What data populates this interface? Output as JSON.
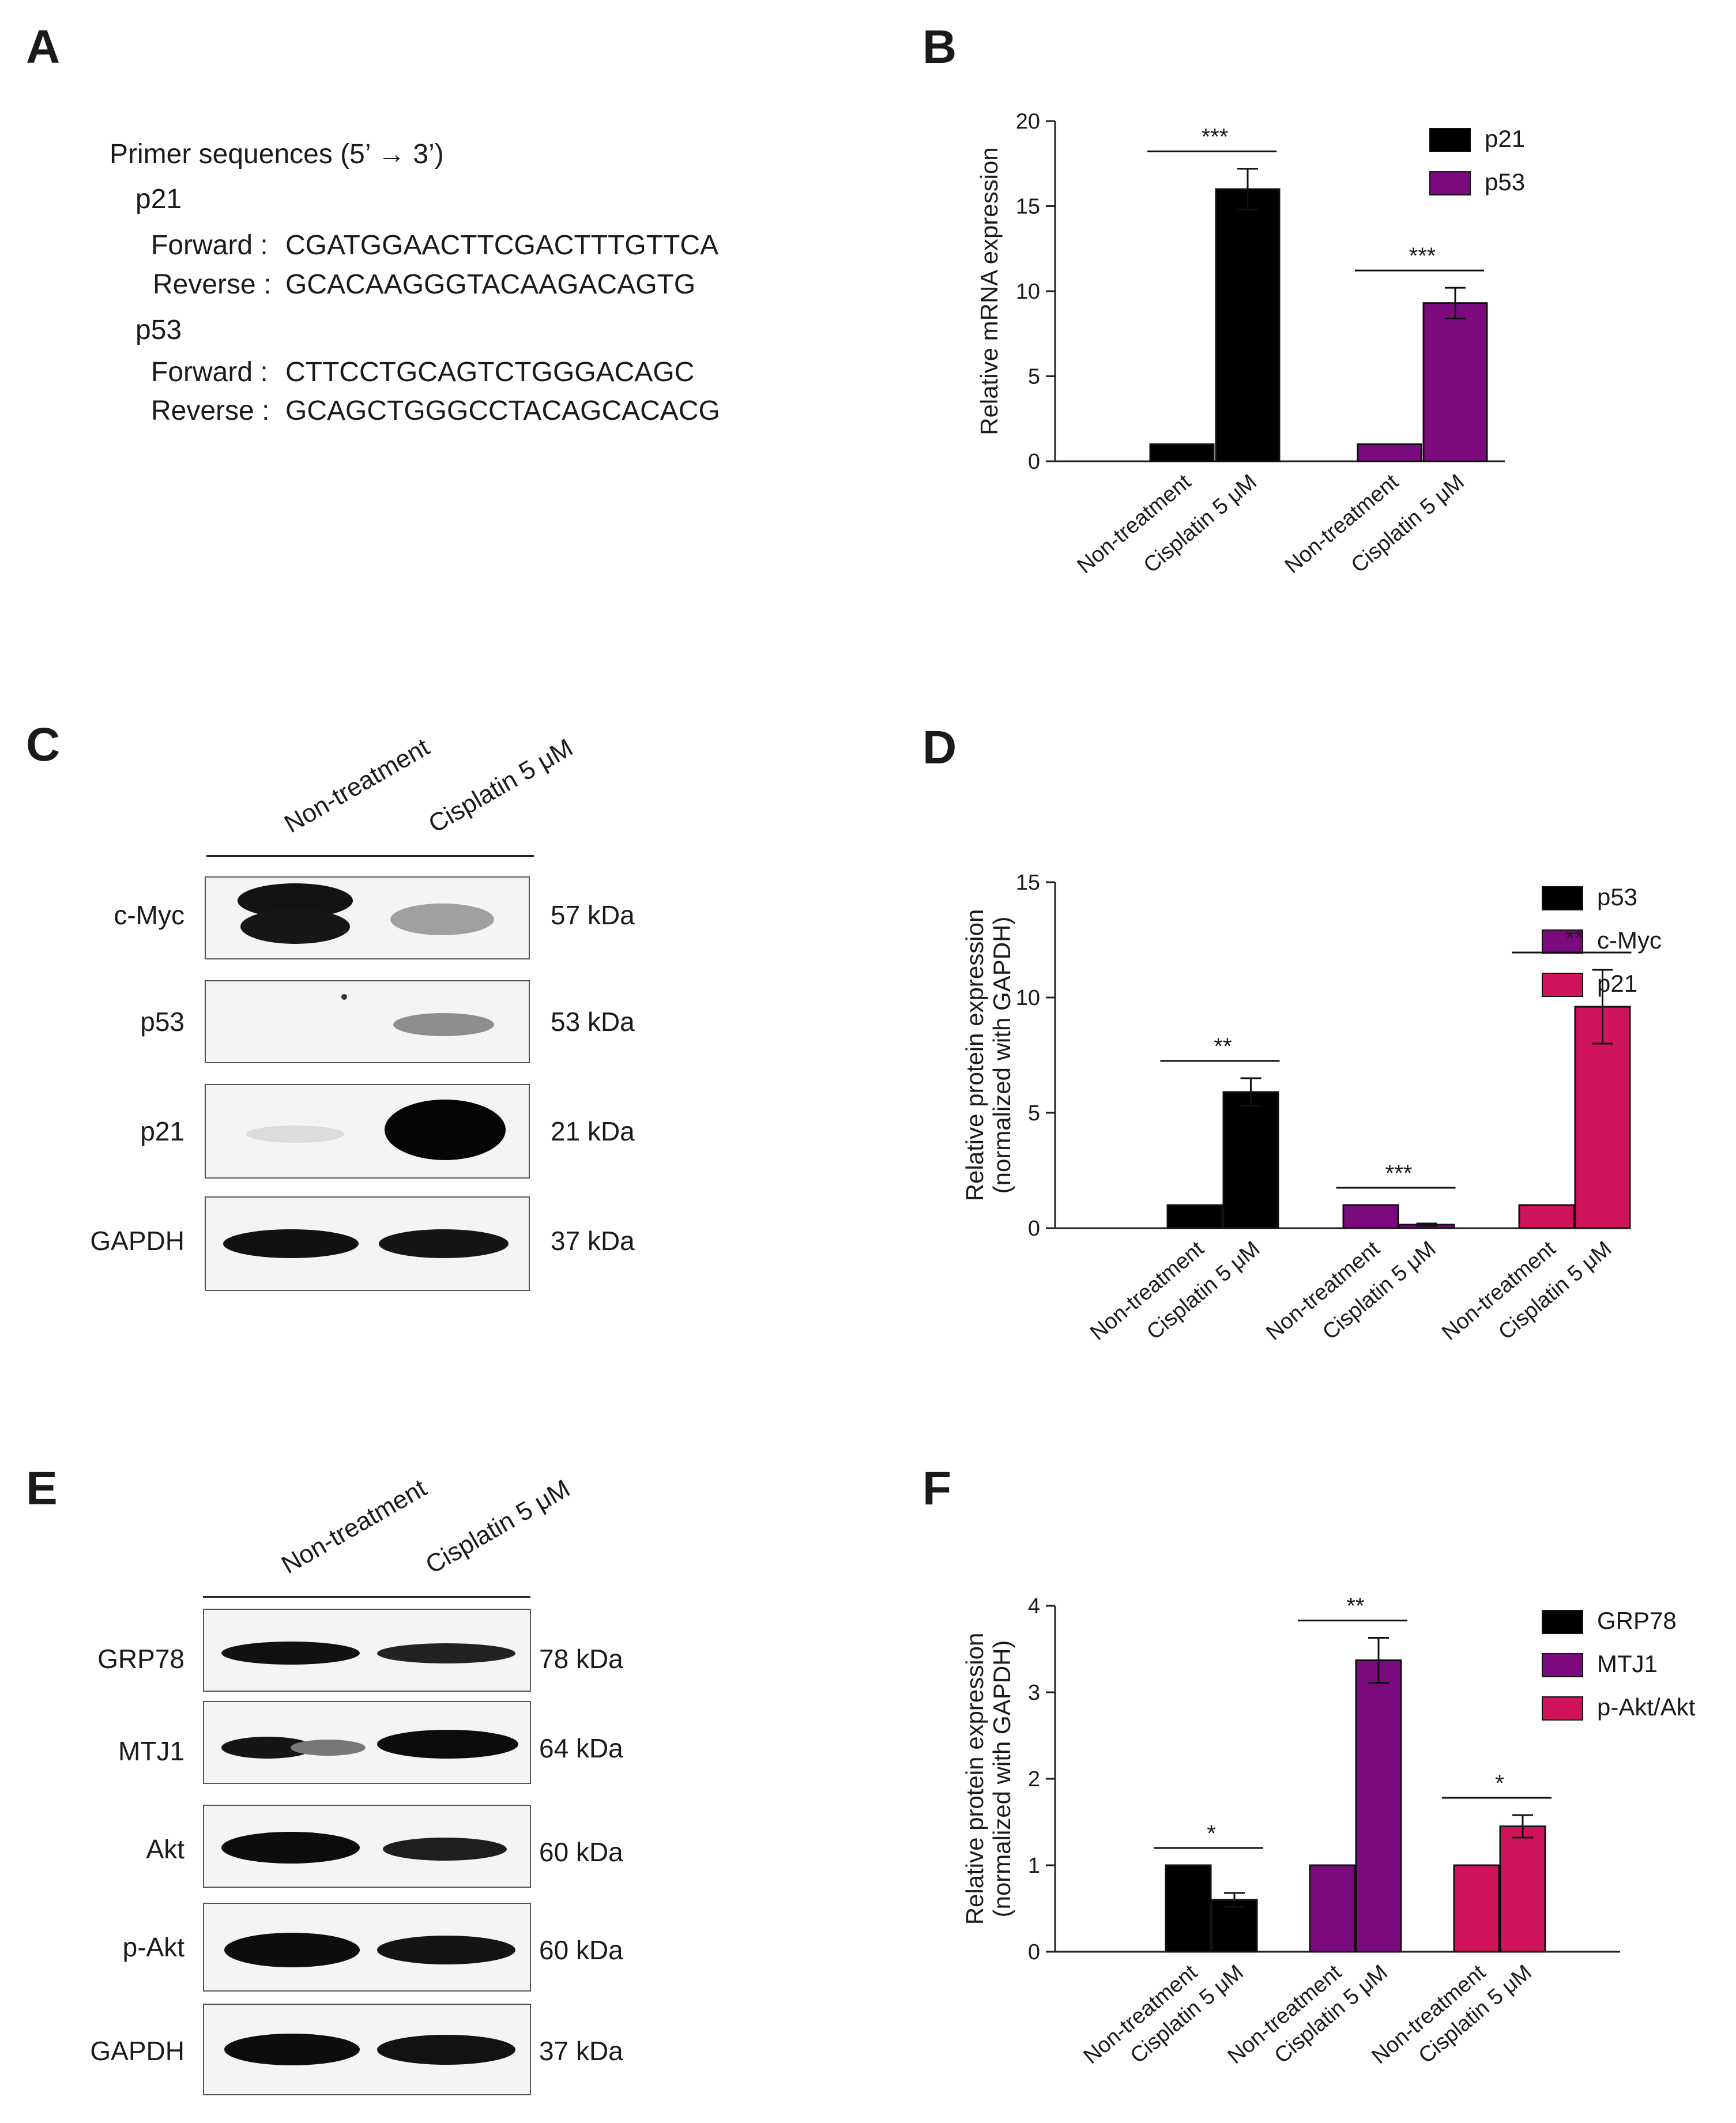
{
  "panels": {
    "A": {
      "letter": "A",
      "title": "Primer sequences (5’ → 3’)",
      "genes": [
        {
          "name": "p21",
          "forward_label": "Forward :",
          "forward": "CGATGGAACTTCGACTTTGTTCA",
          "reverse_label": "Reverse :",
          "reverse": "GCACAAGGGTACAAGACAGTG"
        },
        {
          "name": "p53",
          "forward_label": "Forward :",
          "forward": "CTTCCTGCAGTCTGGGACAGC",
          "reverse_label": "Reverse :",
          "reverse": "GCAGCTGGGCCTACAGCACACG"
        }
      ]
    },
    "B": {
      "letter": "B"
    },
    "C": {
      "letter": "C",
      "lanes": [
        "Non-treatment",
        "Cisplatin 5 μM"
      ],
      "blots": [
        {
          "label": "c-Myc",
          "kda": "57 kDa"
        },
        {
          "label": "p53",
          "kda": "53 kDa"
        },
        {
          "label": "p21",
          "kda": "21 kDa"
        },
        {
          "label": "GAPDH",
          "kda": "37 kDa"
        }
      ]
    },
    "D": {
      "letter": "D"
    },
    "E": {
      "letter": "E",
      "lanes": [
        "Non-treatment",
        "Cisplatin 5 μM"
      ],
      "blots": [
        {
          "label": "GRP78",
          "kda": "78 kDa"
        },
        {
          "label": "MTJ1",
          "kda": "64 kDa"
        },
        {
          "label": "Akt",
          "kda": "60 kDa"
        },
        {
          "label": "p-Akt",
          "kda": "60 kDa"
        },
        {
          "label": "GAPDH",
          "kda": "37 kDa"
        }
      ]
    },
    "F": {
      "letter": "F"
    }
  },
  "colors": {
    "black": "#000000",
    "purple": "#7b0a7f",
    "crimson": "#d0145c"
  },
  "chart_data": [
    {
      "panel": "B",
      "type": "bar",
      "ylabel": "Relative mRNA expression",
      "ylim": [
        0,
        20
      ],
      "yticks": [
        "0",
        "5",
        "10",
        "15",
        "20"
      ],
      "legend_position": "top-right",
      "series": [
        {
          "name": "p21",
          "color": "#000000",
          "categories": [
            "Non-treatment",
            "Cisplatin 5 μM"
          ],
          "values": [
            1,
            16
          ],
          "errors": [
            0,
            1.2
          ],
          "significance": "***"
        },
        {
          "name": "p53",
          "color": "#7b0a7f",
          "categories": [
            "Non-treatment",
            "Cisplatin 5 μM"
          ],
          "values": [
            1,
            9.3
          ],
          "errors": [
            0,
            0.9
          ],
          "significance": "***"
        }
      ]
    },
    {
      "panel": "D",
      "type": "bar",
      "ylabel": "Relative protein expression",
      "ylabel2": "(normalized with GAPDH)",
      "ylim": [
        0,
        15
      ],
      "yticks": [
        "0",
        "5",
        "10",
        "15"
      ],
      "legend_position": "top-right",
      "series": [
        {
          "name": "p53",
          "color": "#000000",
          "categories": [
            "Non-treatment",
            "Cisplatin 5 μM"
          ],
          "values": [
            1,
            5.9
          ],
          "errors": [
            0,
            0.6
          ],
          "significance": "**"
        },
        {
          "name": "c-Myc",
          "color": "#7b0a7f",
          "categories": [
            "Non-treatment",
            "Cisplatin 5 μM"
          ],
          "values": [
            1,
            0.15
          ],
          "errors": [
            0,
            0.05
          ],
          "significance": "***"
        },
        {
          "name": "p21",
          "color": "#d0145c",
          "categories": [
            "Non-treatment",
            "Cisplatin 5 μM"
          ],
          "values": [
            1,
            9.6
          ],
          "errors": [
            0,
            1.6
          ],
          "significance": "**"
        }
      ]
    },
    {
      "panel": "F",
      "type": "bar",
      "ylabel": "Relative protein expression",
      "ylabel2": "(normalized with GAPDH)",
      "ylim": [
        0,
        4
      ],
      "yticks": [
        "0",
        "1",
        "2",
        "3",
        "4"
      ],
      "legend_position": "top-right",
      "series": [
        {
          "name": "GRP78",
          "color": "#000000",
          "categories": [
            "Non-treatment",
            "Cisplatin 5 μM"
          ],
          "values": [
            1,
            0.6
          ],
          "errors": [
            0,
            0.08
          ],
          "significance": "*"
        },
        {
          "name": "MTJ1",
          "color": "#7b0a7f",
          "categories": [
            "Non-treatment",
            "Cisplatin 5 μM"
          ],
          "values": [
            1,
            3.37
          ],
          "errors": [
            0,
            0.26
          ],
          "significance": "**"
        },
        {
          "name": "p-Akt/Akt",
          "color": "#d0145c",
          "categories": [
            "Non-treatment",
            "Cisplatin 5 μM"
          ],
          "values": [
            1,
            1.45
          ],
          "errors": [
            0,
            0.13
          ],
          "significance": "*"
        }
      ]
    }
  ]
}
